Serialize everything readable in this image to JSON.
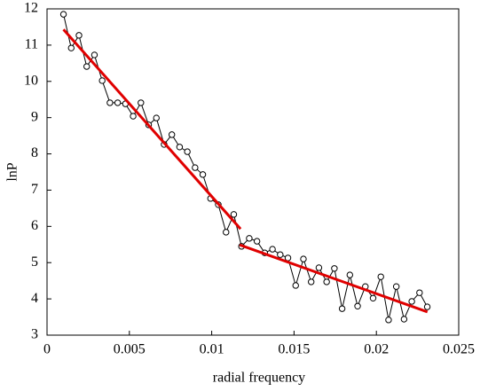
{
  "chart_data": {
    "type": "line",
    "xlabel": "radial frequency",
    "ylabel": "lnP",
    "xlim": [
      0,
      0.025
    ],
    "ylim": [
      3,
      12
    ],
    "xticks": [
      0,
      0.005,
      0.01,
      0.015,
      0.02,
      0.025
    ],
    "yticks": [
      3,
      4,
      5,
      6,
      7,
      8,
      9,
      10,
      11,
      12
    ],
    "series": [
      {
        "color": "#000000",
        "marker": "circle",
        "x": [
          0.001,
          0.00147,
          0.00194,
          0.00241,
          0.00288,
          0.00335,
          0.00382,
          0.00429,
          0.00476,
          0.00523,
          0.0057,
          0.00617,
          0.00664,
          0.00711,
          0.00758,
          0.00805,
          0.00852,
          0.00899,
          0.00946,
          0.00993,
          0.0104,
          0.01087,
          0.01134,
          0.01181,
          0.01228,
          0.01275,
          0.01322,
          0.01369,
          0.01416,
          0.01463,
          0.0151,
          0.01557,
          0.01604,
          0.01651,
          0.01698,
          0.01745,
          0.01792,
          0.01839,
          0.01886,
          0.01933,
          0.0198,
          0.02027,
          0.02074,
          0.02121,
          0.02168,
          0.02215,
          0.02262,
          0.02309
        ],
        "values": [
          11.85,
          10.92,
          11.27,
          10.41,
          10.73,
          10.02,
          9.41,
          9.41,
          9.38,
          9.04,
          9.41,
          8.8,
          8.99,
          8.26,
          8.53,
          8.19,
          8.06,
          7.62,
          7.43,
          6.77,
          6.6,
          5.84,
          6.33,
          5.45,
          5.67,
          5.59,
          5.27,
          5.37,
          5.22,
          5.13,
          4.37,
          5.1,
          4.47,
          4.86,
          4.47,
          4.84,
          3.73,
          4.66,
          3.8,
          4.34,
          4.02,
          4.61,
          3.42,
          4.34,
          3.44,
          3.93,
          4.17,
          3.78
        ]
      },
      {
        "color": "#e00000",
        "x": [
          0.001,
          0.01175
        ],
        "values": [
          11.43,
          5.93
        ]
      },
      {
        "color": "#e00000",
        "x": [
          0.0117,
          0.0231
        ],
        "values": [
          5.49,
          3.64
        ]
      }
    ]
  }
}
